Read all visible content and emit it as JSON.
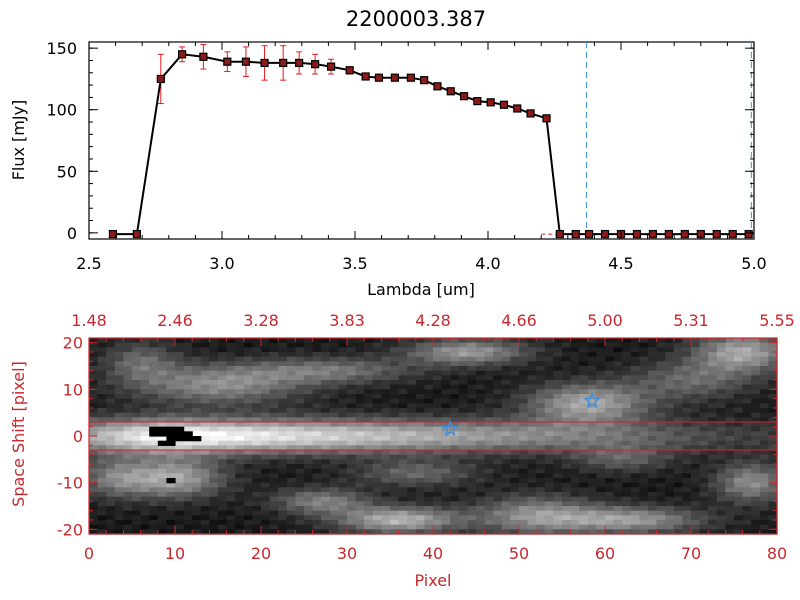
{
  "title": "2200003.387",
  "colors": {
    "axis": "#000000",
    "red": "#c8282d",
    "errbar": "#e11b1b",
    "marker": "#8b1a1a",
    "blue": "#3a8fe0"
  },
  "chart_data": [
    {
      "type": "line",
      "title": "2200003.387",
      "xlabel": "Lambda [um]",
      "ylabel": "Flux [mJy]",
      "xlim": [
        2.5,
        5.0
      ],
      "ylim": [
        -5,
        155
      ],
      "xticks": [
        "2.5",
        "3.0",
        "3.5",
        "4.0",
        "4.5",
        "5.0"
      ],
      "yticks": [
        "0",
        "50",
        "100",
        "150"
      ],
      "x": [
        2.59,
        2.68,
        2.77,
        2.85,
        2.93,
        3.02,
        3.09,
        3.16,
        3.23,
        3.29,
        3.35,
        3.41,
        3.48,
        3.54,
        3.59,
        3.65,
        3.71,
        3.76,
        3.81,
        3.86,
        3.91,
        3.96,
        4.01,
        4.06,
        4.11,
        4.16,
        4.22,
        4.27,
        4.33,
        4.38,
        4.44,
        4.5,
        4.56,
        4.62,
        4.68,
        4.74,
        4.8,
        4.86,
        4.92,
        4.98
      ],
      "y": [
        -1,
        -1,
        125,
        145,
        143,
        139,
        139,
        138,
        138,
        138,
        137,
        135,
        132,
        127,
        126,
        126,
        126,
        124,
        119,
        115,
        111,
        107,
        106,
        104,
        101,
        97,
        93,
        -1,
        -1,
        -1,
        -1,
        -1,
        -1,
        -1,
        -1,
        -1,
        -1,
        -1,
        -1,
        -1
      ],
      "err": [
        0,
        0,
        20,
        6,
        10,
        8,
        12,
        14,
        14,
        9,
        8,
        6,
        3,
        2,
        2,
        2,
        2,
        2,
        2,
        2,
        2,
        2,
        2,
        2,
        2,
        2,
        2,
        0,
        0,
        0,
        0,
        0,
        0,
        0,
        0,
        0,
        0,
        0,
        0,
        0
      ],
      "vlines": [
        4.37,
        4.99
      ]
    },
    {
      "type": "heatmap",
      "xlabel": "Pixel",
      "ylabel": "Space Shift [pixel]",
      "xlim": [
        0,
        80
      ],
      "ylim": [
        -21,
        21
      ],
      "xticks": [
        "0",
        "10",
        "20",
        "30",
        "40",
        "50",
        "60",
        "70",
        "80"
      ],
      "yticks": [
        "-20",
        "-10",
        "0",
        "10",
        "20"
      ],
      "top_ticks": [
        "1.48",
        "2.46",
        "3.28",
        "3.83",
        "4.28",
        "4.66",
        "5.00",
        "5.31",
        "5.55"
      ],
      "aperture_y": [
        3,
        -3
      ],
      "stars": [
        {
          "x": 42,
          "y": 1.5
        },
        {
          "x": 58.5,
          "y": 7.5
        }
      ]
    }
  ]
}
